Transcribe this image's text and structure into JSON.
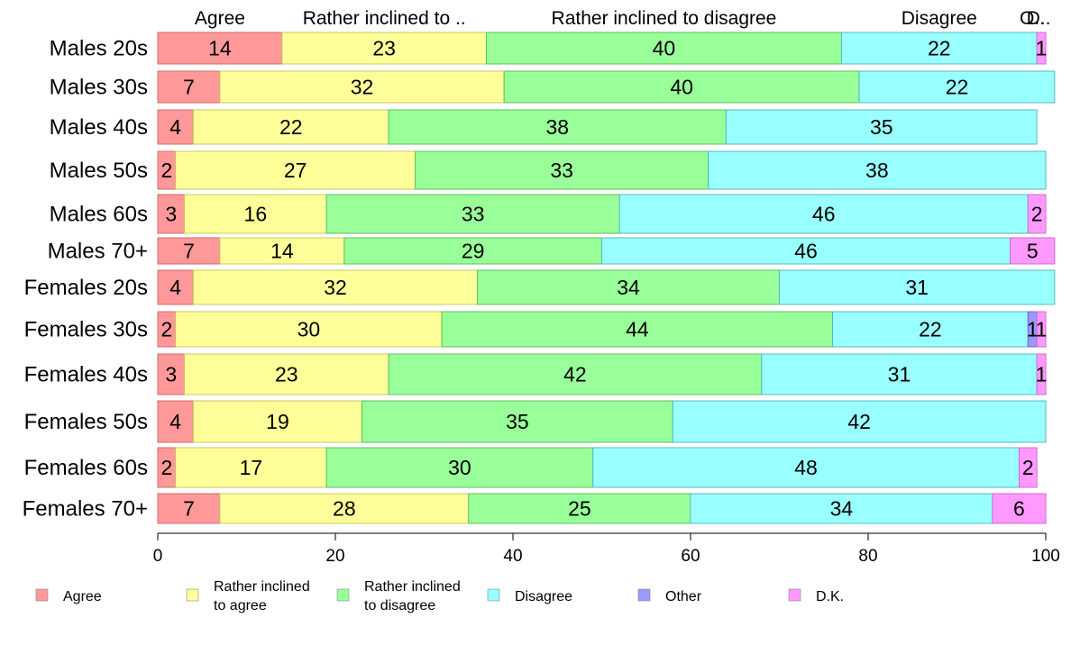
{
  "chart_data": {
    "type": "bar",
    "orientation": "horizontal",
    "stacked": true,
    "categories": [
      "Males 20s",
      "Males 30s",
      "Males 40s",
      "Males 50s",
      "Males 60s",
      "Males 70+",
      "Females 20s",
      "Females 30s",
      "Females 40s",
      "Females 50s",
      "Females 60s",
      "Females 70+"
    ],
    "series": [
      {
        "name": "Agree",
        "column_label": "Agree",
        "color": "#ff9999",
        "edge": "#d06a6a",
        "values": [
          14,
          7,
          4,
          2,
          3,
          7,
          4,
          2,
          3,
          4,
          2,
          7
        ]
      },
      {
        "name": "Rather inclined to agree",
        "column_label": "Rather inclined to ..",
        "color": "#ffff99",
        "edge": "#c8c860",
        "values": [
          23,
          32,
          22,
          27,
          16,
          14,
          32,
          30,
          23,
          19,
          17,
          28
        ]
      },
      {
        "name": "Rather inclined to disagree",
        "column_label": "Rather inclined to disagree",
        "color": "#99ff99",
        "edge": "#5fbf5f",
        "values": [
          40,
          40,
          38,
          33,
          33,
          29,
          34,
          44,
          42,
          35,
          30,
          25
        ]
      },
      {
        "name": "Disagree",
        "column_label": "Disagree",
        "color": "#99ffff",
        "edge": "#55bbbb",
        "values": [
          22,
          22,
          35,
          38,
          46,
          46,
          31,
          22,
          31,
          42,
          48,
          34
        ]
      },
      {
        "name": "Other",
        "column_label": "O..",
        "color": "#9999ff",
        "edge": "#6a6ad0",
        "values": [
          0,
          0,
          0,
          0,
          0,
          0,
          0,
          1,
          0,
          0,
          0,
          0
        ]
      },
      {
        "name": "D.K.",
        "column_label": "D..",
        "color": "#ff99ff",
        "edge": "#d06ad0",
        "values": [
          1,
          0,
          0,
          0,
          2,
          5,
          0,
          1,
          1,
          0,
          2,
          6
        ]
      }
    ],
    "xlim": [
      0,
      100
    ],
    "xticks": [
      0,
      20,
      40,
      60,
      80,
      100
    ],
    "legend": {
      "position": "bottom",
      "entries": [
        {
          "label_lines": [
            "Agree"
          ],
          "color": "#ff9999"
        },
        {
          "label_lines": [
            "Rather inclined",
            "to agree"
          ],
          "color": "#ffff99"
        },
        {
          "label_lines": [
            "Rather inclined",
            "to disagree"
          ],
          "color": "#99ff99"
        },
        {
          "label_lines": [
            "Disagree"
          ],
          "color": "#99ffff"
        },
        {
          "label_lines": [
            "Other"
          ],
          "color": "#9999ff"
        },
        {
          "label_lines": [
            "D.K."
          ],
          "color": "#ff99ff"
        }
      ]
    },
    "grid": false
  }
}
